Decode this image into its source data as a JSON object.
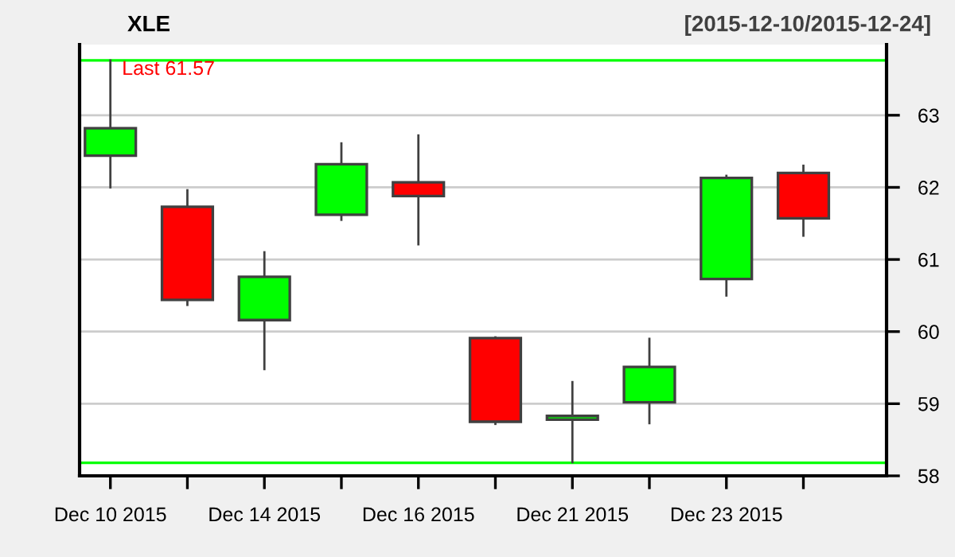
{
  "chart_data": {
    "type": "candlestick",
    "title": "XLE",
    "subtitle": "[2015-12-10/2015-12-24]",
    "categories": [
      "Dec 10 2015",
      null,
      "Dec 14 2015",
      null,
      "Dec 16 2015",
      null,
      "Dec 21 2015",
      null,
      "Dec 23 2015",
      null
    ],
    "ohlc": [
      [
        62.44,
        63.76,
        62.0,
        62.82
      ],
      [
        61.73,
        61.96,
        60.37,
        60.44
      ],
      [
        60.16,
        61.1,
        59.48,
        60.76
      ],
      [
        61.62,
        62.61,
        61.55,
        62.32
      ],
      [
        62.07,
        62.72,
        61.21,
        61.88
      ],
      [
        59.91,
        59.92,
        58.72,
        58.75
      ],
      [
        58.78,
        59.3,
        58.19,
        58.83
      ],
      [
        59.02,
        59.9,
        58.73,
        59.51
      ],
      [
        60.73,
        62.16,
        60.5,
        62.13
      ],
      [
        62.2,
        62.3,
        61.33,
        61.57
      ]
    ],
    "colors": [
      "#00ff00",
      "#ff0000",
      "#00ff00",
      "#00ff00",
      "#ff0000",
      "#ff0000",
      "#00ff00",
      "#00ff00",
      "#00ff00",
      "#ff0000"
    ],
    "ylim": [
      58,
      63.98
    ],
    "yticks": [
      58,
      59,
      60,
      61,
      62,
      63
    ],
    "grid": "y",
    "ref_lines": [
      {
        "axis": "y",
        "value": 63.76,
        "label": "Last 61.57",
        "color": "#00ff00"
      },
      {
        "axis": "y",
        "value": 58.18,
        "color": "#00ff00"
      }
    ]
  }
}
